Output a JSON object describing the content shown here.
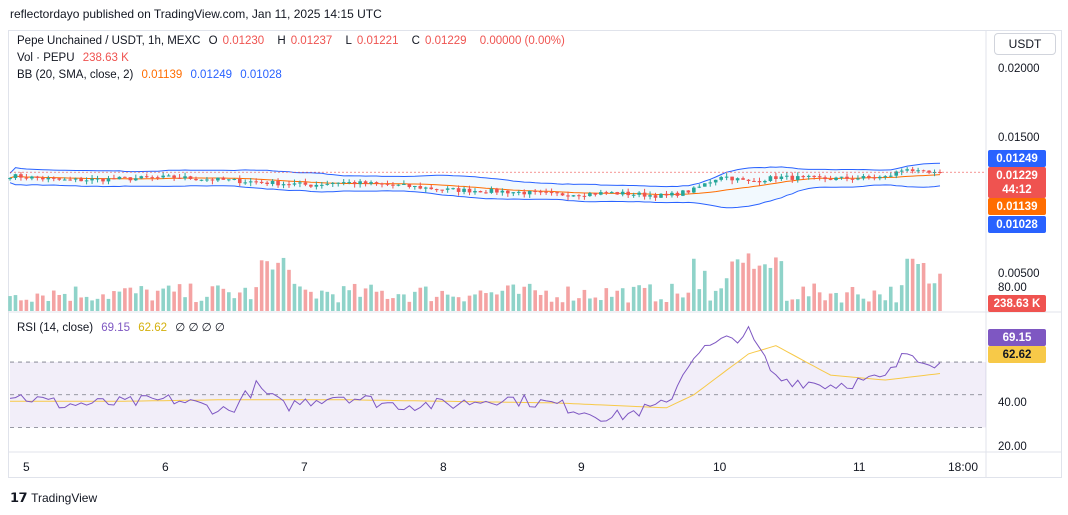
{
  "header": {
    "published": "reflectordayo published on TradingView.com, Jan 11, 2025 14:15 UTC"
  },
  "legend": {
    "symbol": "Pepe Unchained / USDT, 1h, MEXC",
    "o_label": "O",
    "o_value": "0.01230",
    "h_label": "H",
    "h_value": "0.01237",
    "l_label": "L",
    "l_value": "0.01221",
    "c_label": "C",
    "c_value": "0.01229",
    "change": "0.00000 (0.00%)",
    "vol_label": "Vol · PEPU",
    "vol_value": "238.63 K",
    "bb_label": "BB (20, SMA, close, 2)",
    "bb_basis": "0.01139",
    "bb_upper": "0.01249",
    "bb_lower": "0.01028",
    "rsi_label": "RSI (14, close)",
    "rsi_value": "69.15",
    "rsi_ma": "62.62",
    "rsi_extra": "∅ ∅ ∅ ∅"
  },
  "currency_button": "USDT",
  "price_axis": [
    "0.02000",
    "0.01500",
    "0.00500"
  ],
  "rsi_axis": [
    "80.00",
    "40.00",
    "20.00"
  ],
  "price_tags": {
    "upper": "0.01249",
    "last": "0.01229",
    "countdown": "44:12",
    "basis": "0.01139",
    "lower": "0.01028",
    "volume": "238.63 K",
    "rsi": "69.15",
    "rsi_ma": "62.62"
  },
  "time_axis": [
    "5",
    "6",
    "7",
    "8",
    "9",
    "10",
    "11",
    "18:00"
  ],
  "footer": {
    "brand": "TradingView"
  },
  "colors": {
    "up": "#26a69a",
    "down": "#ef5350",
    "bb_band": "#2962ff",
    "bb_basis": "#ff6d00",
    "rsi": "#7e57c2",
    "rsi_ma": "#f7c948",
    "vol_up": "#8fd3c9",
    "vol_down": "#f4a3a3"
  },
  "chart_data": {
    "type": "candlestick",
    "series_price_keypoints": [
      [
        0,
        0.0122
      ],
      [
        10,
        0.0119
      ],
      [
        20,
        0.012
      ],
      [
        30,
        0.0121
      ],
      [
        40,
        0.0119
      ],
      [
        50,
        0.0117
      ],
      [
        55,
        0.0116
      ],
      [
        60,
        0.0118
      ],
      [
        70,
        0.0116
      ],
      [
        80,
        0.0113
      ],
      [
        90,
        0.0112
      ],
      [
        100,
        0.011
      ],
      [
        110,
        0.0111
      ],
      [
        120,
        0.0109
      ],
      [
        125,
        0.0113
      ],
      [
        130,
        0.0122
      ],
      [
        135,
        0.0118
      ],
      [
        140,
        0.0121
      ],
      [
        150,
        0.012
      ],
      [
        160,
        0.0121
      ],
      [
        164,
        0.0127
      ],
      [
        166,
        0.0124
      ],
      [
        170,
        0.0123
      ]
    ],
    "rsi_keypoints": [
      [
        0,
        50
      ],
      [
        10,
        44
      ],
      [
        20,
        45
      ],
      [
        30,
        47
      ],
      [
        40,
        40
      ],
      [
        45,
        55
      ],
      [
        50,
        43
      ],
      [
        60,
        50
      ],
      [
        70,
        44
      ],
      [
        80,
        44
      ],
      [
        90,
        48
      ],
      [
        100,
        44
      ],
      [
        110,
        36
      ],
      [
        120,
        44
      ],
      [
        125,
        75
      ],
      [
        130,
        82
      ],
      [
        135,
        88
      ],
      [
        140,
        60
      ],
      [
        150,
        56
      ],
      [
        160,
        60
      ],
      [
        164,
        76
      ],
      [
        170,
        69
      ]
    ],
    "rsi_ma_keypoints": [
      [
        0,
        46
      ],
      [
        20,
        46
      ],
      [
        40,
        47
      ],
      [
        60,
        47
      ],
      [
        80,
        46
      ],
      [
        100,
        45
      ],
      [
        120,
        42
      ],
      [
        125,
        50
      ],
      [
        135,
        75
      ],
      [
        140,
        80
      ],
      [
        150,
        62
      ],
      [
        160,
        59
      ],
      [
        170,
        63
      ]
    ],
    "volume_scale_max": 1000,
    "ylim_price": [
      0.0035,
      0.0215
    ],
    "ylim_rsi": [
      15,
      100
    ]
  }
}
